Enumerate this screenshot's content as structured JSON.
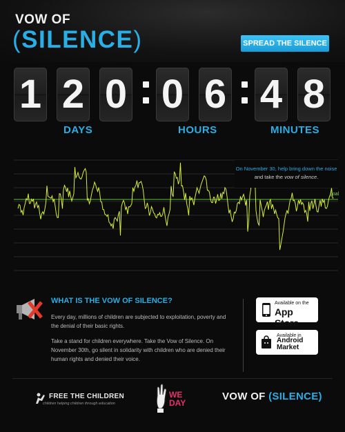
{
  "logo": {
    "line1": "VOW OF",
    "line2_open": "(",
    "line2": "SILENCE",
    "line2_close": ")"
  },
  "header": {
    "spread_button": "SPREAD THE SILENCE"
  },
  "countdown": {
    "digits": [
      "1",
      "2",
      "0",
      "0",
      "6",
      "4",
      "8"
    ],
    "labels": {
      "days": "DAYS",
      "hours": "HOURS",
      "minutes": "MINUTES"
    }
  },
  "graph": {
    "goal_label": "goal",
    "callout": {
      "date": "On November 30,",
      "line1_rest": "help bring down the noise",
      "line2": "and take the",
      "vow": "vow of silence",
      "period": "."
    },
    "colors": {
      "waveform": "#d9f03a",
      "goal_line": "#5fc23a",
      "grid": "#2a2a2a"
    }
  },
  "info": {
    "title": "WHAT IS THE VOW OF SILENCE?",
    "p1": "Every day, millions of children are subjected to exploitation, poverty and the denial of their basic rights.",
    "p2": "Take a stand for children everywhere. Take the Vow of Silence. On November 30th, go silent in solidarity with children who are denied their human rights and denied their voice."
  },
  "stores": {
    "apple": {
      "small": "Available on the",
      "big": "App Store"
    },
    "android": {
      "small": "Available in",
      "big1": "Android",
      "big2": "Market"
    }
  },
  "footer": {
    "ftc_title": "FREE THE CHILDREN",
    "ftc_sub": "children helping children through education",
    "weday_we": "WE",
    "weday_day": "DAY",
    "vow_logo": "VOW OF",
    "vow_logo_paren": "(SILENCE)"
  },
  "colors": {
    "accent": "#29aee6",
    "background": "#0b0b0b",
    "weday": "#e6306e"
  }
}
